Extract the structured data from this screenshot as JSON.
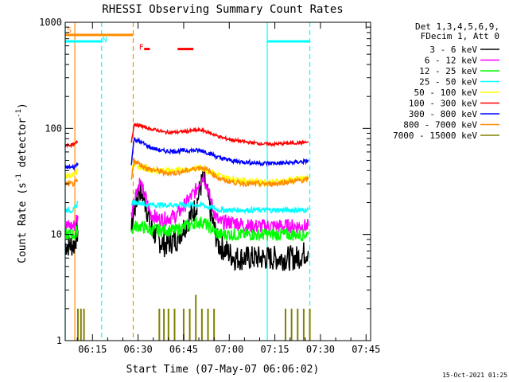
{
  "chart_data": {
    "type": "line",
    "title": "RHESSI Observing Summary Count Rates",
    "xlabel": "Start Time (07-May-07 06:06:02)",
    "ylabel_main": "Count Rate (s",
    "ylabel_sup1": "-1",
    "ylabel_mid": " detector",
    "ylabel_sup2": "-1",
    "ylabel_end": ")",
    "y_scale": "log",
    "xlim_minutes": [
      366.03,
      466.5
    ],
    "ylim": [
      1,
      1000
    ],
    "x_tick_minutes": [
      375,
      390,
      405,
      420,
      435,
      450,
      465
    ],
    "x_tick_labels": [
      "06:15",
      "06:30",
      "06:45",
      "07:00",
      "07:15",
      "07:30",
      "07:45"
    ],
    "y_tick_values": [
      1,
      10,
      100,
      1000
    ],
    "y_tick_labels": [
      "1",
      "10",
      "100",
      "1000"
    ],
    "legend_header": [
      "Det 1,3,4,5,6,9,",
      "FDecim 1, Att 0"
    ],
    "series": [
      {
        "name": "3 - 6 keV",
        "color": "#000000",
        "values_desc": "bursty",
        "points": [
          [
            366.03,
            8
          ],
          [
            368.9,
            8
          ],
          [
            370.2,
            11
          ],
          [
            387.8,
            11
          ],
          [
            388.7,
            17
          ],
          [
            390.5,
            27
          ],
          [
            392.5,
            20
          ],
          [
            394.0,
            12
          ],
          [
            396.5,
            9
          ],
          [
            398.5,
            8
          ],
          [
            402.5,
            9
          ],
          [
            406.0,
            13
          ],
          [
            409.0,
            18
          ],
          [
            410.5,
            28
          ],
          [
            411.6,
            34
          ],
          [
            413.0,
            22
          ],
          [
            414.8,
            12
          ],
          [
            416.5,
            8
          ],
          [
            419.0,
            7
          ],
          [
            422.0,
            6
          ],
          [
            426.0,
            6
          ],
          [
            430.0,
            6
          ],
          [
            434.0,
            6
          ],
          [
            438.0,
            6
          ],
          [
            442.0,
            6
          ],
          [
            446.0,
            7
          ]
        ]
      },
      {
        "name": "6 - 12 keV",
        "color": "#ff00ff",
        "points": [
          [
            366.03,
            12
          ],
          [
            368.9,
            12
          ],
          [
            370.2,
            15
          ],
          [
            387.8,
            15
          ],
          [
            388.7,
            22
          ],
          [
            390.5,
            31
          ],
          [
            392.5,
            22
          ],
          [
            394.0,
            16
          ],
          [
            396.5,
            14
          ],
          [
            398.5,
            14
          ],
          [
            402.5,
            15
          ],
          [
            406.0,
            20
          ],
          [
            409.0,
            26
          ],
          [
            410.5,
            33
          ],
          [
            411.6,
            36
          ],
          [
            413.0,
            26
          ],
          [
            414.8,
            17
          ],
          [
            416.5,
            13
          ],
          [
            419.0,
            13
          ],
          [
            422.0,
            13
          ],
          [
            426.0,
            12
          ],
          [
            430.0,
            12
          ],
          [
            434.0,
            12
          ],
          [
            438.0,
            12
          ],
          [
            442.0,
            12
          ],
          [
            446.0,
            12
          ]
        ]
      },
      {
        "name": "12 - 25 keV",
        "color": "#00ff00",
        "points": [
          [
            366.03,
            10
          ],
          [
            368.9,
            10
          ],
          [
            370.2,
            11
          ],
          [
            387.8,
            11
          ],
          [
            388.7,
            12
          ],
          [
            390.5,
            12
          ],
          [
            392.5,
            11.5
          ],
          [
            394.0,
            11
          ],
          [
            396.5,
            11
          ],
          [
            398.5,
            11
          ],
          [
            402.5,
            11
          ],
          [
            406.0,
            12
          ],
          [
            409.0,
            13
          ],
          [
            410.5,
            13
          ],
          [
            411.6,
            13
          ],
          [
            413.0,
            12
          ],
          [
            414.8,
            11
          ],
          [
            416.5,
            10
          ],
          [
            419.0,
            10
          ],
          [
            422.0,
            10
          ],
          [
            426.0,
            10
          ],
          [
            430.0,
            10
          ],
          [
            434.0,
            10
          ],
          [
            438.0,
            10
          ],
          [
            442.0,
            10
          ],
          [
            446.0,
            10
          ]
        ]
      },
      {
        "name": "25 - 50 keV",
        "color": "#00ffff",
        "points": [
          [
            366.03,
            17
          ],
          [
            368.9,
            17
          ],
          [
            370.2,
            20
          ],
          [
            387.8,
            20
          ],
          [
            388.7,
            20
          ],
          [
            390.5,
            20
          ],
          [
            392.5,
            19
          ],
          [
            394.0,
            19
          ],
          [
            396.5,
            19
          ],
          [
            398.5,
            19
          ],
          [
            402.5,
            19
          ],
          [
            406.0,
            19
          ],
          [
            409.0,
            19
          ],
          [
            410.5,
            19
          ],
          [
            411.6,
            19
          ],
          [
            413.0,
            18
          ],
          [
            414.8,
            18
          ],
          [
            416.5,
            17
          ],
          [
            419.0,
            17
          ],
          [
            422.0,
            17
          ],
          [
            426.0,
            17
          ],
          [
            430.0,
            17
          ],
          [
            434.0,
            17
          ],
          [
            438.0,
            17
          ],
          [
            442.0,
            17
          ],
          [
            446.0,
            17
          ]
        ]
      },
      {
        "name": "50 - 100 keV",
        "color": "#ffff00",
        "points": [
          [
            366.03,
            36
          ],
          [
            368.9,
            36
          ],
          [
            370.2,
            40
          ],
          [
            387.8,
            40
          ],
          [
            388.7,
            46
          ],
          [
            390.5,
            44
          ],
          [
            392.5,
            42
          ],
          [
            394.0,
            40
          ],
          [
            396.5,
            40
          ],
          [
            398.5,
            40
          ],
          [
            402.5,
            40
          ],
          [
            406.0,
            41
          ],
          [
            409.0,
            42
          ],
          [
            410.5,
            42
          ],
          [
            411.6,
            42
          ],
          [
            413.0,
            40
          ],
          [
            414.8,
            38
          ],
          [
            416.5,
            36
          ],
          [
            419.0,
            34
          ],
          [
            422.0,
            33
          ],
          [
            426.0,
            32
          ],
          [
            430.0,
            31
          ],
          [
            434.0,
            31
          ],
          [
            438.0,
            32
          ],
          [
            442.0,
            33
          ],
          [
            446.0,
            34
          ]
        ]
      },
      {
        "name": "100 - 300 keV",
        "color": "#ff0000",
        "points": [
          [
            366.03,
            70
          ],
          [
            368.9,
            70
          ],
          [
            370.2,
            75
          ],
          [
            387.8,
            75
          ],
          [
            388.7,
            110
          ],
          [
            390.5,
            106
          ],
          [
            392.5,
            102
          ],
          [
            394.0,
            99
          ],
          [
            396.5,
            96
          ],
          [
            398.5,
            92
          ],
          [
            402.5,
            92
          ],
          [
            406.0,
            94
          ],
          [
            409.0,
            96
          ],
          [
            410.5,
            96
          ],
          [
            411.6,
            95
          ],
          [
            413.0,
            92
          ],
          [
            414.8,
            88
          ],
          [
            416.5,
            84
          ],
          [
            419.0,
            80
          ],
          [
            422.0,
            77
          ],
          [
            426.0,
            74
          ],
          [
            430.0,
            72
          ],
          [
            434.0,
            71
          ],
          [
            438.0,
            72
          ],
          [
            442.0,
            73
          ],
          [
            446.0,
            74
          ]
        ]
      },
      {
        "name": "300 - 800 keV",
        "color": "#0000ff",
        "points": [
          [
            366.03,
            43
          ],
          [
            368.9,
            43
          ],
          [
            370.2,
            47
          ],
          [
            387.8,
            47
          ],
          [
            388.7,
            80
          ],
          [
            390.5,
            75
          ],
          [
            392.5,
            70
          ],
          [
            394.0,
            66
          ],
          [
            396.5,
            63
          ],
          [
            398.5,
            61
          ],
          [
            402.5,
            61
          ],
          [
            406.0,
            62
          ],
          [
            409.0,
            62
          ],
          [
            410.5,
            62
          ],
          [
            411.6,
            61
          ],
          [
            413.0,
            59
          ],
          [
            414.8,
            56
          ],
          [
            416.5,
            53
          ],
          [
            419.0,
            51
          ],
          [
            422.0,
            49
          ],
          [
            426.0,
            48
          ],
          [
            430.0,
            47
          ],
          [
            434.0,
            47
          ],
          [
            438.0,
            47
          ],
          [
            442.0,
            48
          ],
          [
            446.0,
            49
          ]
        ]
      },
      {
        "name": "800 - 7000 keV",
        "color": "#ff8c00",
        "points": [
          [
            366.03,
            30
          ],
          [
            368.9,
            30
          ],
          [
            370.2,
            32
          ],
          [
            387.8,
            32
          ],
          [
            388.7,
            50
          ],
          [
            390.5,
            46
          ],
          [
            392.5,
            43
          ],
          [
            394.0,
            41
          ],
          [
            396.5,
            40
          ],
          [
            398.5,
            38
          ],
          [
            402.5,
            38
          ],
          [
            406.0,
            40
          ],
          [
            409.0,
            42
          ],
          [
            410.5,
            43
          ],
          [
            411.6,
            42
          ],
          [
            413.0,
            40
          ],
          [
            414.8,
            37
          ],
          [
            416.5,
            34
          ],
          [
            419.0,
            32
          ],
          [
            422.0,
            31
          ],
          [
            426.0,
            30
          ],
          [
            430.0,
            30
          ],
          [
            434.0,
            30
          ],
          [
            438.0,
            31
          ],
          [
            442.0,
            32
          ],
          [
            446.0,
            33
          ]
        ]
      },
      {
        "name": "7000 - 15000 keV",
        "color": "#808000",
        "points": [
          [
            370.2,
            2
          ],
          [
            370.6,
            1
          ],
          [
            371.2,
            2
          ],
          [
            371.6,
            1
          ],
          [
            372.2,
            2
          ],
          [
            395.5,
            1
          ],
          [
            397.0,
            2
          ],
          [
            397.5,
            1
          ],
          [
            398.5,
            2
          ],
          [
            399.0,
            1
          ],
          [
            400.0,
            2
          ],
          [
            401.0,
            1
          ],
          [
            402.0,
            2
          ],
          [
            404.0,
            1
          ],
          [
            405.0,
            2
          ],
          [
            406.0,
            1
          ],
          [
            407.0,
            2
          ],
          [
            408.0,
            1
          ],
          [
            409.0,
            2.7
          ],
          [
            410.0,
            1
          ],
          [
            411.0,
            2
          ],
          [
            412.0,
            1
          ],
          [
            413.0,
            2
          ],
          [
            414.0,
            1
          ],
          [
            415.0,
            2
          ],
          [
            416.0,
            1
          ],
          [
            438.5,
            2
          ],
          [
            439.5,
            1
          ],
          [
            440.5,
            2
          ],
          [
            441.5,
            1
          ],
          [
            442.5,
            2
          ],
          [
            443.5,
            1
          ],
          [
            444.5,
            2
          ],
          [
            445.5,
            1
          ],
          [
            446.5,
            2
          ]
        ]
      }
    ],
    "annotations": [
      {
        "label": "S",
        "color": "#ff8c00",
        "x": 366.6,
        "y": 800
      },
      {
        "label": "N",
        "color": "#00ffff",
        "x": 378.2,
        "y": 650
      },
      {
        "label": "F",
        "color": "#ff0000",
        "x": 390.3,
        "y": 550
      }
    ],
    "state_bars": [
      {
        "color": "#ff8c00",
        "x": [
          366.03,
          388.4
        ],
        "y": 760
      },
      {
        "color": "#00ffff",
        "x": [
          366.03,
          378.0
        ],
        "y": 660
      },
      {
        "color": "#00ffff",
        "x": [
          432.5,
          446.5
        ],
        "y": 660
      },
      {
        "color": "#ff0000",
        "x": [
          392.0,
          393.9
        ],
        "y": 560
      },
      {
        "color": "#ff0000",
        "x": [
          403.0,
          408.2
        ],
        "y": 560
      }
    ],
    "vlines": [
      {
        "x": 366.03,
        "color": "#00ffff",
        "style": "solid"
      },
      {
        "x": 369.2,
        "color": "#ff8c00",
        "style": "solid"
      },
      {
        "x": 378.0,
        "color": "#00ffff",
        "style": "dash"
      },
      {
        "x": 388.4,
        "color": "#ff8c00",
        "style": "dash"
      },
      {
        "x": 432.5,
        "color": "#00ffff",
        "style": "solid"
      },
      {
        "x": 446.5,
        "color": "#00ffff",
        "style": "dash"
      }
    ]
  },
  "footer_timestamp": "15-Oct-2021 01:25"
}
